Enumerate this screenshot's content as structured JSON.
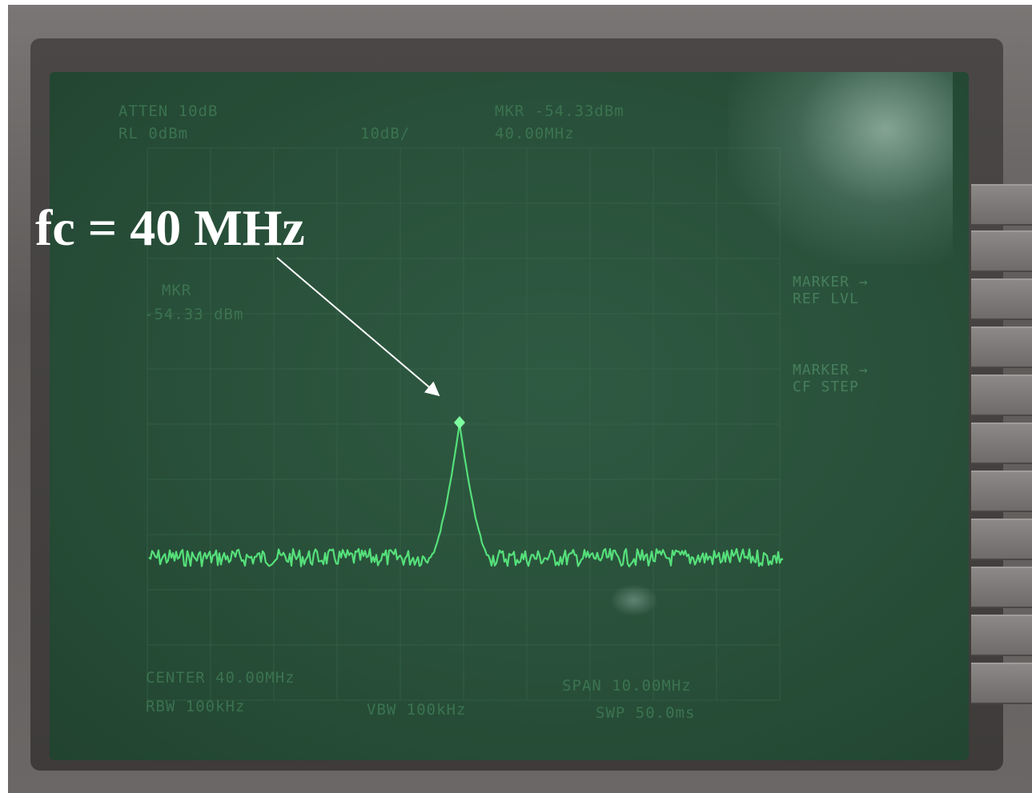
{
  "annotation": {
    "text": "fc = 40 MHz"
  },
  "analyzer": {
    "atten": "ATTEN 10dB",
    "ref_level": "RL 0dBm",
    "scale": "10dB/",
    "marker_readout": "MKR -54.33dBm",
    "marker_freq": "40.00MHz",
    "marker_side": "MKR",
    "marker_value": "-54.33 dBm",
    "center": "CENTER 40.00MHz",
    "span": "SPAN 10.00MHz",
    "rbw": "RBW 100kHz",
    "vbw": "VBW 100kHz",
    "sweep": "SWP 50.0ms"
  },
  "softkeys": [
    {
      "label": "MARKER →\nREF LVL"
    },
    {
      "label": "MARKER →\nCF STEP"
    }
  ],
  "colors": {
    "trace": "#55e07a",
    "screen": "#2a5039",
    "annotation_text": "#ffffff"
  }
}
